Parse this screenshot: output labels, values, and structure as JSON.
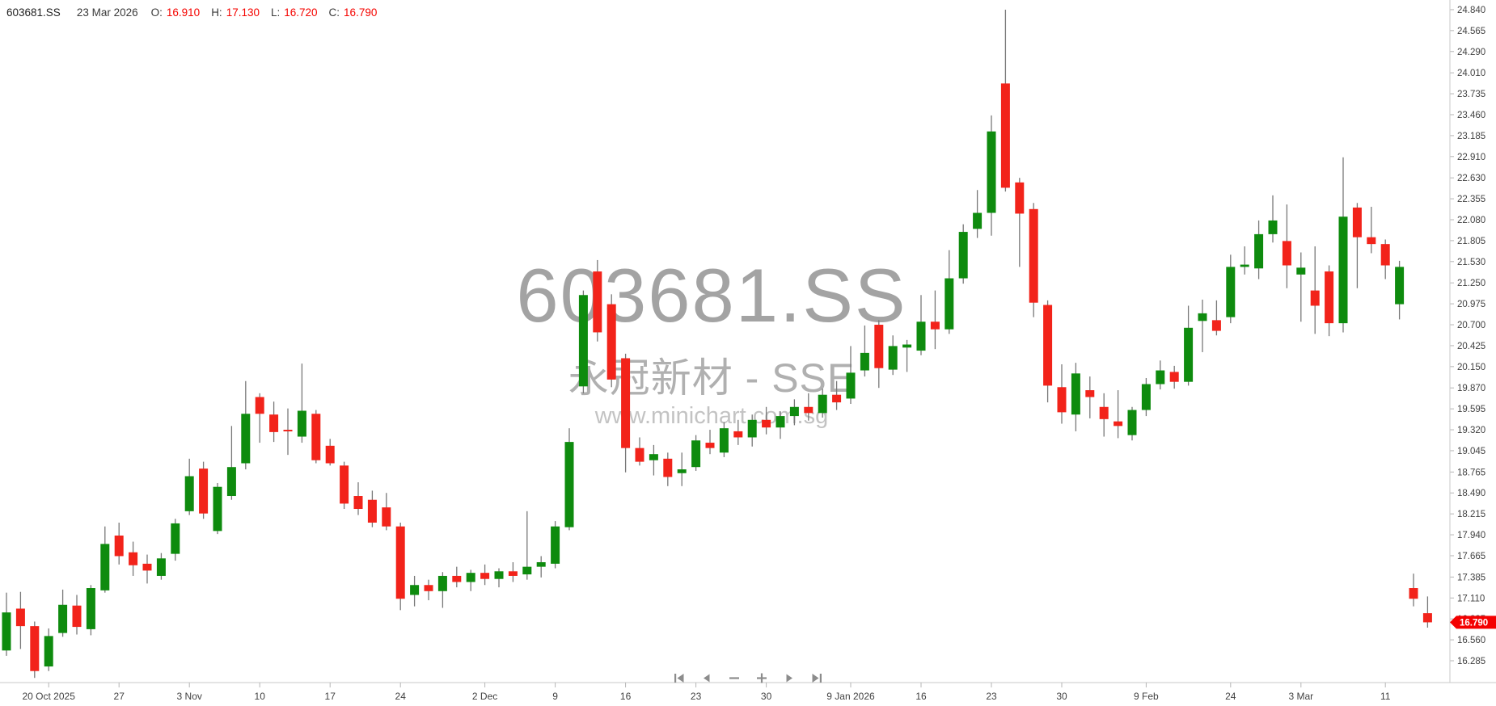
{
  "header": {
    "symbol": "603681.SS",
    "date": "23 Mar 2026",
    "o_label": "O:",
    "o": "16.910",
    "h_label": "H:",
    "h": "17.130",
    "l_label": "L:",
    "l": "16.720",
    "c_label": "C:",
    "c": "16.790"
  },
  "watermark": {
    "title": "603681.SS",
    "subtitle": "永冠新材 - SSE",
    "url": "www.minichart.com.sg"
  },
  "price_axis": {
    "labels": [
      "24.840",
      "24.565",
      "24.290",
      "24.010",
      "23.735",
      "23.460",
      "23.185",
      "22.910",
      "22.630",
      "22.355",
      "22.080",
      "21.805",
      "21.530",
      "21.250",
      "20.975",
      "20.700",
      "20.425",
      "20.150",
      "19.870",
      "19.595",
      "19.320",
      "19.045",
      "18.765",
      "18.490",
      "18.215",
      "17.940",
      "17.665",
      "17.385",
      "17.110",
      "16.835",
      "16.560",
      "16.285"
    ],
    "min": 16.285,
    "max": 24.84,
    "last_price": "16.790",
    "last_price_bg": "#f40000",
    "label_color": "#424242",
    "axis_line_color": "#c9c9c9"
  },
  "time_axis": {
    "label_color": "#424242",
    "ticks": [
      {
        "index": 3,
        "label": "20 Oct 2025"
      },
      {
        "index": 8,
        "label": "27"
      },
      {
        "index": 13,
        "label": "3 Nov"
      },
      {
        "index": 18,
        "label": "10"
      },
      {
        "index": 23,
        "label": "17"
      },
      {
        "index": 28,
        "label": "24"
      },
      {
        "index": 34,
        "label": "2 Dec"
      },
      {
        "index": 39,
        "label": "9"
      },
      {
        "index": 44,
        "label": "16"
      },
      {
        "index": 49,
        "label": "23"
      },
      {
        "index": 54,
        "label": "30"
      },
      {
        "index": 60,
        "label": "9 Jan 2026"
      },
      {
        "index": 65,
        "label": "16"
      },
      {
        "index": 70,
        "label": "23"
      },
      {
        "index": 75,
        "label": "30"
      },
      {
        "index": 81,
        "label": "9 Feb"
      },
      {
        "index": 87,
        "label": "24"
      },
      {
        "index": 92,
        "label": "3 Mar"
      },
      {
        "index": 98,
        "label": "11"
      }
    ]
  },
  "toolbar": {
    "buttons": [
      {
        "name": "skip-to-start"
      },
      {
        "name": "step-backward"
      },
      {
        "name": "zoom-out"
      },
      {
        "name": "zoom-in"
      },
      {
        "name": "step-forward"
      },
      {
        "name": "skip-to-end"
      }
    ]
  },
  "chart_data": {
    "type": "candlestick",
    "title": "603681.SS 永冠新材 - SSE daily candlestick chart",
    "up_color": "#0e8b0e",
    "down_color": "#f2231a",
    "wick_color": "#787878",
    "ylim": [
      16.285,
      24.84
    ],
    "grid": false,
    "columns": [
      "date",
      "open",
      "high",
      "low",
      "close"
    ],
    "candles": [
      [
        "2025-10-15",
        16.42,
        17.18,
        16.35,
        16.92
      ],
      [
        "2025-10-16",
        16.97,
        17.19,
        16.44,
        16.74
      ],
      [
        "2025-10-17",
        16.74,
        16.8,
        16.06,
        16.15
      ],
      [
        "2025-10-20",
        16.21,
        16.71,
        16.15,
        16.61
      ],
      [
        "2025-10-21",
        16.65,
        17.22,
        16.6,
        17.02
      ],
      [
        "2025-10-22",
        17.01,
        17.15,
        16.63,
        16.73
      ],
      [
        "2025-10-23",
        16.7,
        17.28,
        16.62,
        17.24
      ],
      [
        "2025-10-24",
        17.21,
        18.05,
        17.18,
        17.82
      ],
      [
        "2025-10-27",
        17.93,
        18.1,
        17.55,
        17.66
      ],
      [
        "2025-10-28",
        17.71,
        17.85,
        17.4,
        17.54
      ],
      [
        "2025-10-29",
        17.56,
        17.68,
        17.3,
        17.47
      ],
      [
        "2025-10-30",
        17.4,
        17.7,
        17.35,
        17.63
      ],
      [
        "2025-10-31",
        17.69,
        18.15,
        17.6,
        18.09
      ],
      [
        "2025-11-03",
        18.25,
        18.94,
        18.2,
        18.71
      ],
      [
        "2025-11-04",
        18.81,
        18.9,
        18.15,
        18.22
      ],
      [
        "2025-11-05",
        17.99,
        18.62,
        17.95,
        18.57
      ],
      [
        "2025-11-06",
        18.45,
        19.37,
        18.4,
        18.83
      ],
      [
        "2025-11-07",
        18.88,
        19.96,
        18.8,
        19.53
      ],
      [
        "2025-11-10",
        19.75,
        19.8,
        19.15,
        19.53
      ],
      [
        "2025-11-11",
        19.52,
        19.69,
        19.16,
        19.29
      ],
      [
        "2025-11-12",
        19.32,
        19.6,
        18.99,
        19.3
      ],
      [
        "2025-11-13",
        19.23,
        20.19,
        19.15,
        19.57
      ],
      [
        "2025-11-14",
        19.53,
        19.58,
        18.88,
        18.92
      ],
      [
        "2025-11-17",
        19.11,
        19.2,
        18.85,
        18.88
      ],
      [
        "2025-11-18",
        18.85,
        18.9,
        18.28,
        18.35
      ],
      [
        "2025-11-19",
        18.45,
        18.63,
        18.2,
        18.28
      ],
      [
        "2025-11-20",
        18.4,
        18.52,
        18.04,
        18.1
      ],
      [
        "2025-11-21",
        18.3,
        18.49,
        18.0,
        18.05
      ],
      [
        "2025-11-24",
        18.05,
        18.1,
        16.95,
        17.1
      ],
      [
        "2025-11-25",
        17.15,
        17.4,
        17.0,
        17.28
      ],
      [
        "2025-11-26",
        17.28,
        17.35,
        17.08,
        17.2
      ],
      [
        "2025-11-27",
        17.2,
        17.45,
        16.98,
        17.4
      ],
      [
        "2025-11-28",
        17.4,
        17.52,
        17.25,
        17.32
      ],
      [
        "2025-12-01",
        17.32,
        17.48,
        17.2,
        17.44
      ],
      [
        "2025-12-02",
        17.44,
        17.55,
        17.28,
        17.36
      ],
      [
        "2025-12-03",
        17.36,
        17.5,
        17.25,
        17.46
      ],
      [
        "2025-12-04",
        17.46,
        17.58,
        17.32,
        17.4
      ],
      [
        "2025-12-05",
        17.42,
        18.25,
        17.35,
        17.52
      ],
      [
        "2025-12-08",
        17.52,
        17.66,
        17.38,
        17.58
      ],
      [
        "2025-12-09",
        17.56,
        18.12,
        17.5,
        18.05
      ],
      [
        "2025-12-10",
        18.04,
        19.34,
        18.0,
        19.16
      ],
      [
        "2025-12-11",
        19.89,
        21.15,
        19.8,
        21.09
      ],
      [
        "2025-12-12",
        21.4,
        21.55,
        20.48,
        20.6
      ],
      [
        "2025-12-15",
        20.97,
        21.1,
        19.88,
        19.98
      ],
      [
        "2025-12-16",
        20.26,
        20.32,
        18.76,
        19.08
      ],
      [
        "2025-12-17",
        19.08,
        19.22,
        18.85,
        18.9
      ],
      [
        "2025-12-18",
        18.92,
        19.12,
        18.72,
        19.0
      ],
      [
        "2025-12-19",
        18.94,
        19.02,
        18.58,
        18.7
      ],
      [
        "2025-12-22",
        18.75,
        19.02,
        18.58,
        18.8
      ],
      [
        "2025-12-23",
        18.83,
        19.25,
        18.78,
        19.18
      ],
      [
        "2025-12-24",
        19.15,
        19.32,
        19.0,
        19.08
      ],
      [
        "2025-12-25",
        19.02,
        19.42,
        18.96,
        19.34
      ],
      [
        "2025-12-26",
        19.3,
        19.45,
        19.12,
        19.22
      ],
      [
        "2025-12-29",
        19.22,
        19.52,
        19.1,
        19.45
      ],
      [
        "2025-12-30",
        19.45,
        19.62,
        19.26,
        19.35
      ],
      [
        "2025-12-31",
        19.35,
        19.56,
        19.2,
        19.5
      ],
      [
        "2026-01-05",
        19.5,
        19.72,
        19.38,
        19.62
      ],
      [
        "2026-01-06",
        19.62,
        19.8,
        19.44,
        19.54
      ],
      [
        "2026-01-07",
        19.54,
        19.86,
        19.48,
        19.78
      ],
      [
        "2026-01-08",
        19.78,
        19.96,
        19.58,
        19.68
      ],
      [
        "2026-01-09",
        19.73,
        20.42,
        19.66,
        20.07
      ],
      [
        "2026-01-12",
        20.1,
        20.69,
        20.02,
        20.33
      ],
      [
        "2026-01-13",
        20.7,
        20.76,
        19.87,
        20.13
      ],
      [
        "2026-01-14",
        20.11,
        20.56,
        20.04,
        20.42
      ],
      [
        "2026-01-15",
        20.4,
        20.5,
        20.08,
        20.44
      ],
      [
        "2026-01-16",
        20.36,
        21.09,
        20.3,
        20.74
      ],
      [
        "2026-01-19",
        20.74,
        21.15,
        20.38,
        20.64
      ],
      [
        "2026-01-20",
        20.64,
        21.68,
        20.58,
        21.31
      ],
      [
        "2026-01-21",
        21.31,
        22.02,
        21.24,
        21.92
      ],
      [
        "2026-01-22",
        21.96,
        22.47,
        21.84,
        22.17
      ],
      [
        "2026-01-23",
        22.17,
        23.45,
        21.87,
        23.24
      ],
      [
        "2026-01-26",
        23.87,
        24.84,
        22.45,
        22.5
      ],
      [
        "2026-01-27",
        22.57,
        22.63,
        21.46,
        22.16
      ],
      [
        "2026-01-28",
        22.22,
        22.3,
        20.8,
        20.99
      ],
      [
        "2026-01-29",
        20.96,
        21.02,
        19.68,
        19.9
      ],
      [
        "2026-01-30",
        19.88,
        20.18,
        19.4,
        19.55
      ],
      [
        "2026-02-02",
        19.52,
        20.2,
        19.3,
        20.06
      ],
      [
        "2026-02-03",
        19.84,
        20.02,
        19.47,
        19.75
      ],
      [
        "2026-02-04",
        19.62,
        19.8,
        19.23,
        19.46
      ],
      [
        "2026-02-05",
        19.43,
        19.84,
        19.21,
        19.37
      ],
      [
        "2026-02-06",
        19.25,
        19.62,
        19.18,
        19.58
      ],
      [
        "2026-02-09",
        19.58,
        20.0,
        19.5,
        19.92
      ],
      [
        "2026-02-10",
        19.92,
        20.23,
        19.85,
        20.1
      ],
      [
        "2026-02-11",
        20.08,
        20.16,
        19.86,
        19.95
      ],
      [
        "2026-02-12",
        19.95,
        20.95,
        19.9,
        20.66
      ],
      [
        "2026-02-13",
        20.75,
        21.03,
        20.34,
        20.85
      ],
      [
        "2026-02-23",
        20.76,
        21.02,
        20.56,
        20.62
      ],
      [
        "2026-02-24",
        20.8,
        21.62,
        20.72,
        21.46
      ],
      [
        "2026-02-25",
        21.46,
        21.73,
        21.36,
        21.49
      ],
      [
        "2026-02-26",
        21.44,
        22.07,
        21.3,
        21.89
      ],
      [
        "2026-02-27",
        21.89,
        22.4,
        21.78,
        22.07
      ],
      [
        "2026-03-02",
        21.8,
        22.28,
        21.18,
        21.48
      ],
      [
        "2026-03-03",
        21.36,
        21.65,
        20.74,
        21.45
      ],
      [
        "2026-03-04",
        21.15,
        21.73,
        20.58,
        20.95
      ],
      [
        "2026-03-05",
        21.4,
        21.48,
        20.55,
        20.72
      ],
      [
        "2026-03-06",
        20.72,
        22.9,
        20.6,
        22.12
      ],
      [
        "2026-03-09",
        22.24,
        22.3,
        21.18,
        21.85
      ],
      [
        "2026-03-10",
        21.85,
        22.25,
        21.64,
        21.76
      ],
      [
        "2026-03-11",
        21.76,
        21.82,
        21.3,
        21.48
      ],
      [
        "2026-03-12",
        20.97,
        21.54,
        20.77,
        21.46
      ],
      [
        "2026-03-20",
        17.24,
        17.43,
        17.0,
        17.1
      ],
      [
        "2026-03-23",
        16.91,
        17.13,
        16.72,
        16.79
      ]
    ]
  }
}
